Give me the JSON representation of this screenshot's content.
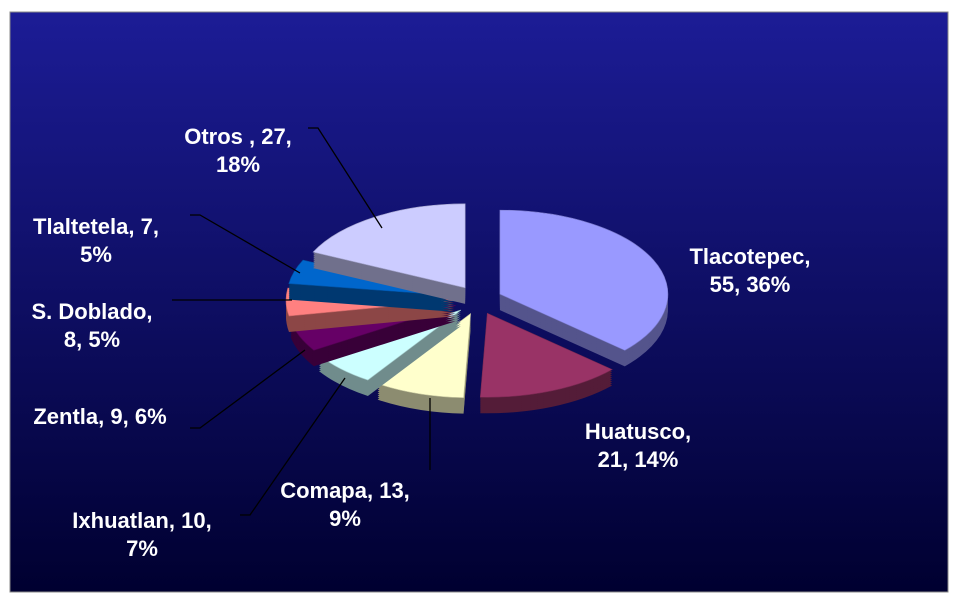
{
  "chart_data": {
    "type": "pie",
    "values": [
      55,
      21,
      13,
      10,
      9,
      8,
      7,
      27
    ],
    "percentages": [
      36,
      14,
      9,
      7,
      6,
      5,
      5,
      18
    ],
    "value_labels": [
      [
        "Tlacotepec,",
        "55, 36%"
      ],
      [
        "Huatusco,",
        "21, 14%"
      ],
      [
        "Comapa, 13,",
        "9%"
      ],
      [
        "Ixhuatlan, 10,",
        "7%"
      ],
      [
        "Zentla, 9, 6%"
      ],
      [
        "S. Doblado,",
        "8, 5%"
      ],
      [
        "Tlaltetela, 7,",
        "5%"
      ],
      [
        "Otros , 27,",
        "18%"
      ]
    ],
    "colors": [
      "#9999ff",
      "#993366",
      "#ffffcc",
      "#ccffff",
      "#660066",
      "#ff8080",
      "#0066cc",
      "#ccccff"
    ],
    "start_angle": 0,
    "direction": "clockwise"
  }
}
